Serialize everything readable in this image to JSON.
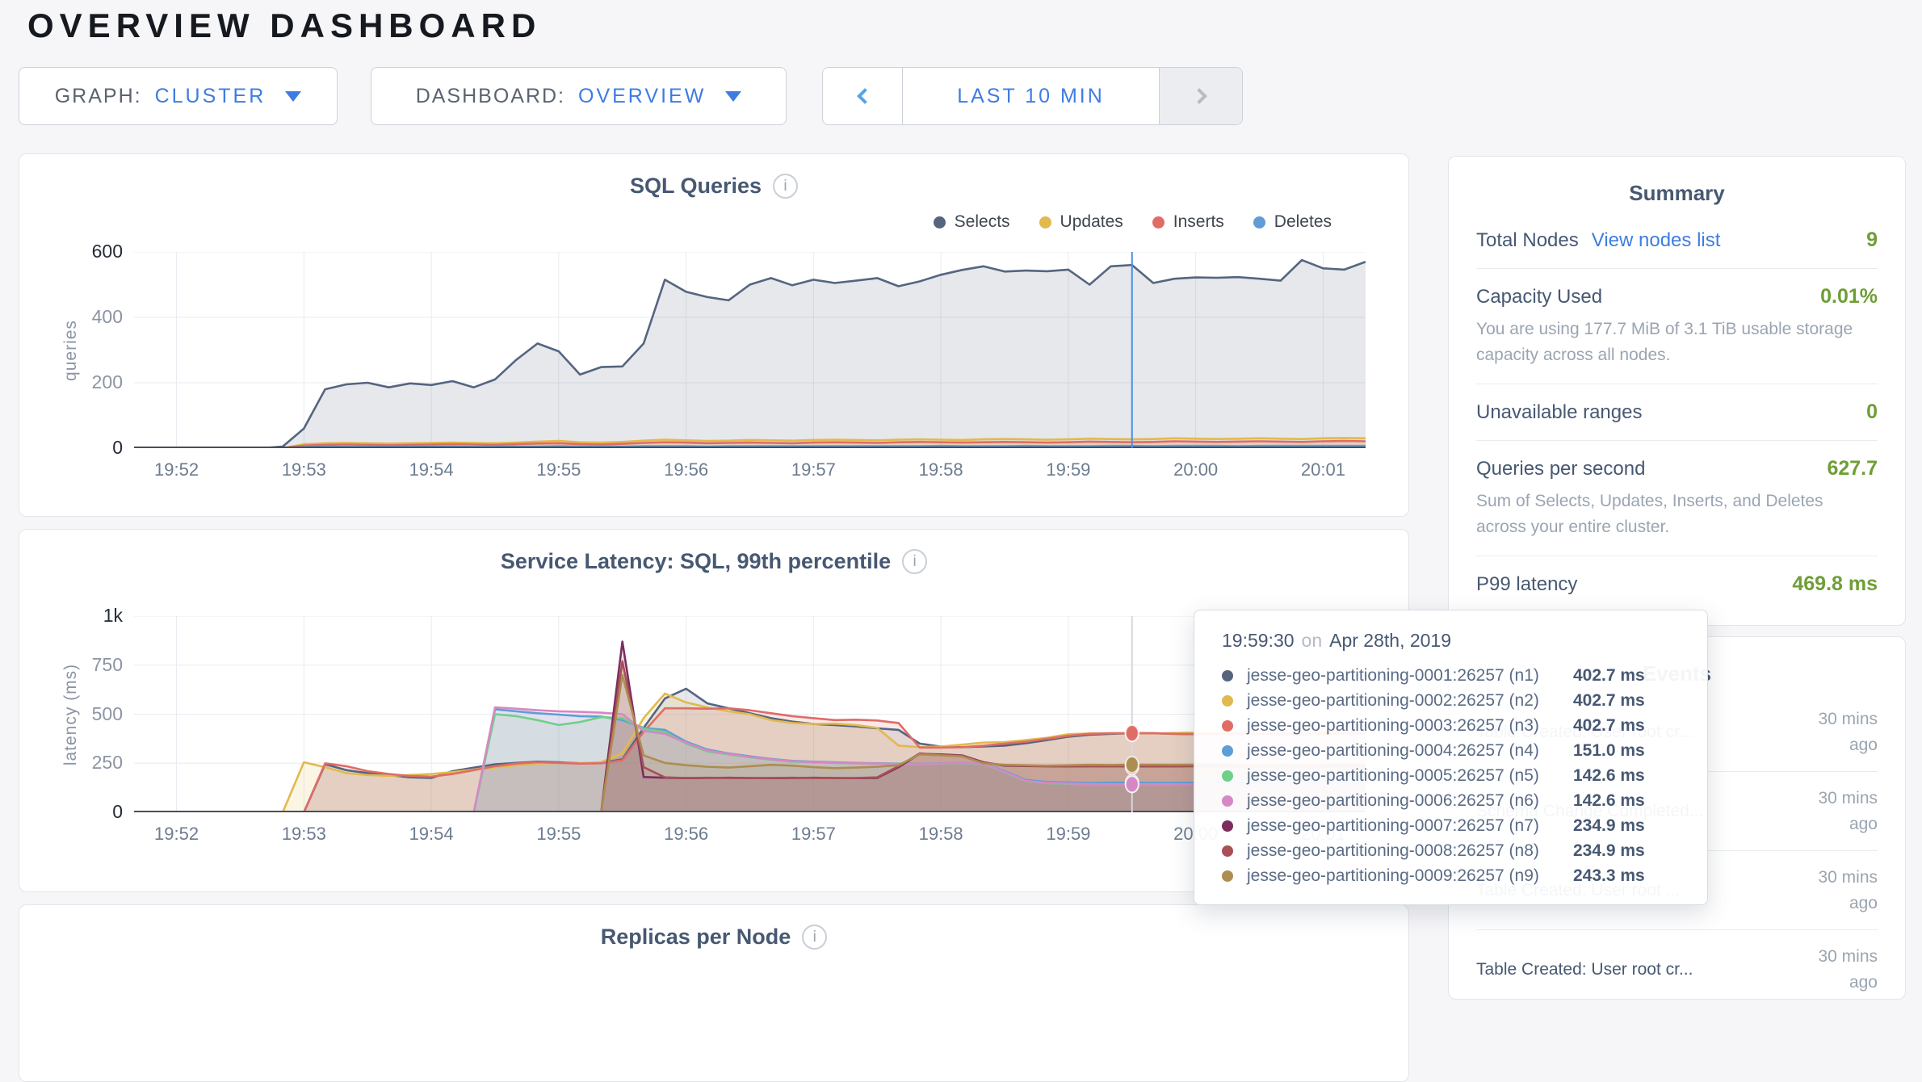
{
  "page": {
    "title": "OVERVIEW DASHBOARD"
  },
  "controls": {
    "graph": {
      "label": "GRAPH:",
      "value": "CLUSTER"
    },
    "dashboard": {
      "label": "DASHBOARD:",
      "value": "OVERVIEW"
    },
    "time_range": {
      "label": "LAST 10 MIN"
    }
  },
  "colors": {
    "accent_blue": "#3e7ce2",
    "link_blue": "#3d7de1",
    "value_green": "#6f9e36",
    "hover_line_sql": "#4a90e2",
    "hover_line_latency": "#d5d8dc"
  },
  "summary": {
    "title": "Summary",
    "rows": [
      {
        "label": "Total Nodes",
        "link": "View nodes list",
        "value": "9"
      },
      {
        "label": "Capacity Used",
        "value": "0.01%",
        "description": "You are using 177.7 MiB of 3.1 TiB usable storage capacity across all nodes."
      },
      {
        "label": "Unavailable ranges",
        "value": "0"
      },
      {
        "label": "Queries per second",
        "value": "627.7",
        "description": "Sum of Selects, Updates, Inserts, and Deletes across your entire cluster."
      },
      {
        "label": "P99 latency",
        "value": "469.8 ms"
      }
    ]
  },
  "events": {
    "title": "Events",
    "items": [
      {
        "text": "Table Created: User root cr...",
        "time": "30 mins ago"
      },
      {
        "text": "Schema Change Completed...",
        "time": "30 mins ago"
      },
      {
        "text": "Table Created: User root ...",
        "time": "30 mins ago"
      },
      {
        "text": "Table Created: User root cr...",
        "time": "30 mins ago"
      }
    ]
  },
  "tooltip": {
    "time": "19:59:30",
    "on": "on",
    "date": "Apr 28th, 2019",
    "rows": [
      {
        "color": "#55657f",
        "name": "jesse-geo-partitioning-0001:26257 (n1)",
        "value": "402.7 ms"
      },
      {
        "color": "#e2b94d",
        "name": "jesse-geo-partitioning-0002:26257 (n2)",
        "value": "402.7 ms"
      },
      {
        "color": "#e06c66",
        "name": "jesse-geo-partitioning-0003:26257 (n3)",
        "value": "402.7 ms"
      },
      {
        "color": "#5e9dd6",
        "name": "jesse-geo-partitioning-0004:26257 (n4)",
        "value": "151.0 ms"
      },
      {
        "color": "#6fd088",
        "name": "jesse-geo-partitioning-0005:26257 (n5)",
        "value": "142.6 ms"
      },
      {
        "color": "#d688c4",
        "name": "jesse-geo-partitioning-0006:26257 (n6)",
        "value": "142.6 ms"
      },
      {
        "color": "#7c2d5d",
        "name": "jesse-geo-partitioning-0007:26257 (n7)",
        "value": "234.9 ms"
      },
      {
        "color": "#a84f57",
        "name": "jesse-geo-partitioning-0008:26257 (n8)",
        "value": "234.9 ms"
      },
      {
        "color": "#ad8d50",
        "name": "jesse-geo-partitioning-0009:26257 (n9)",
        "value": "243.3 ms"
      }
    ]
  },
  "chart_data": [
    {
      "id": "sql-queries",
      "type": "area",
      "title": "SQL Queries",
      "ylabel": "queries",
      "x_start": "19:51:40",
      "x_end": "20:01:20",
      "x_span_s": 580,
      "sample_interval_s": 10,
      "x_ticks": [
        "19:52",
        "19:53",
        "19:54",
        "19:55",
        "19:56",
        "19:57",
        "19:58",
        "19:59",
        "20:00",
        "20:01"
      ],
      "tick_offsets_s": [
        20,
        80,
        140,
        200,
        260,
        320,
        380,
        440,
        500,
        560
      ],
      "ylim": [
        0,
        600
      ],
      "y_gridlines": [
        0,
        200,
        400,
        600
      ],
      "y_tick_labels": [
        "0",
        "200",
        "400",
        "600"
      ],
      "legend_position": "top-right",
      "grid": true,
      "hover": {
        "offset_s": 470,
        "time": "19:59:30",
        "dots": false
      },
      "series": [
        {
          "name": "Selects",
          "color": "#55657f",
          "values": [
            0,
            0,
            0,
            0,
            0,
            0,
            0,
            5,
            60,
            180,
            195,
            200,
            186,
            198,
            193,
            205,
            186,
            210,
            270,
            320,
            296,
            225,
            248,
            250,
            320,
            515,
            478,
            462,
            452,
            500,
            520,
            498,
            515,
            505,
            512,
            520,
            495,
            510,
            530,
            545,
            556,
            540,
            543,
            541,
            546,
            500,
            556,
            560,
            505,
            518,
            522,
            521,
            523,
            518,
            512,
            575,
            550,
            546,
            570
          ]
        },
        {
          "name": "Updates",
          "color": "#e2b94d",
          "values": [
            0,
            0,
            0,
            0,
            0,
            0,
            0,
            0,
            12,
            15,
            16,
            15,
            14,
            15,
            16,
            17,
            16,
            15,
            17,
            20,
            22,
            18,
            17,
            19,
            23,
            26,
            24,
            22,
            23,
            25,
            24,
            23,
            25,
            26,
            25,
            24,
            26,
            27,
            26,
            25,
            27,
            28,
            27,
            26,
            27,
            29,
            28,
            27,
            28,
            30,
            29,
            28,
            29,
            30,
            29,
            28,
            30,
            31,
            30
          ]
        },
        {
          "name": "Inserts",
          "color": "#e06c66",
          "values": [
            0,
            0,
            0,
            0,
            0,
            0,
            0,
            0,
            8,
            10,
            11,
            10,
            9,
            10,
            11,
            12,
            11,
            10,
            12,
            14,
            15,
            12,
            11,
            13,
            16,
            18,
            17,
            15,
            16,
            17,
            16,
            15,
            17,
            18,
            17,
            16,
            18,
            19,
            18,
            17,
            18,
            19,
            18,
            17,
            18,
            20,
            19,
            18,
            19,
            21,
            20,
            19,
            20,
            21,
            20,
            19,
            21,
            22,
            21
          ]
        },
        {
          "name": "Deletes",
          "color": "#5e9dd6",
          "values": [
            0,
            0,
            0,
            0,
            0,
            0,
            0,
            0,
            3,
            4,
            4,
            4,
            4,
            4,
            5,
            5,
            4,
            4,
            5,
            5,
            6,
            5,
            5,
            5,
            6,
            6,
            6,
            5,
            6,
            6,
            6,
            6,
            6,
            6,
            6,
            6,
            6,
            6,
            7,
            6,
            6,
            6,
            7,
            6,
            6,
            6,
            7,
            7,
            6,
            7,
            7,
            7,
            6,
            7,
            7,
            7,
            7,
            7,
            7
          ]
        }
      ]
    },
    {
      "id": "service-latency",
      "type": "area",
      "title": "Service Latency: SQL, 99th percentile",
      "ylabel": "latency (ms)",
      "x_start": "19:51:40",
      "x_end": "20:01:20",
      "x_span_s": 580,
      "sample_interval_s": 10,
      "x_ticks": [
        "19:52",
        "19:53",
        "19:54",
        "19:55",
        "19:56",
        "19:57",
        "19:58",
        "19:59",
        "20:00",
        "20:01"
      ],
      "tick_offsets_s": [
        20,
        80,
        140,
        200,
        260,
        320,
        380,
        440,
        500,
        560
      ],
      "ylim": [
        0,
        1000
      ],
      "y_gridlines": [
        0,
        250,
        500,
        750,
        1000
      ],
      "y_tick_labels": [
        "0",
        "250",
        "500",
        "750",
        "1k"
      ],
      "legend_position": "none",
      "grid": true,
      "hover": {
        "offset_s": 470,
        "time": "19:59:30",
        "dots": true
      },
      "series": [
        {
          "name": "jesse-geo-partitioning-0001:26257 (n1)",
          "color": "#55657f",
          "values": [
            0,
            0,
            0,
            0,
            0,
            0,
            0,
            0,
            0,
            245,
            215,
            200,
            190,
            178,
            175,
            210,
            228,
            245,
            252,
            258,
            255,
            250,
            252,
            270,
            430,
            580,
            630,
            555,
            530,
            505,
            480,
            462,
            450,
            445,
            438,
            428,
            420,
            350,
            335,
            332,
            336,
            340,
            352,
            368,
            385,
            395,
            400,
            403,
            403,
            400,
            398,
            399,
            400,
            401,
            400,
            399,
            402,
            405,
            403
          ]
        },
        {
          "name": "jesse-geo-partitioning-0002:26257 (n2)",
          "color": "#e2b94d",
          "values": [
            0,
            0,
            0,
            0,
            0,
            0,
            0,
            0,
            255,
            230,
            200,
            190,
            186,
            190,
            195,
            205,
            218,
            228,
            240,
            248,
            252,
            250,
            255,
            300,
            480,
            605,
            560,
            535,
            515,
            500,
            470,
            455,
            450,
            452,
            445,
            430,
            340,
            332,
            335,
            345,
            355,
            358,
            368,
            380,
            398,
            402,
            403,
            403,
            402,
            404,
            406,
            405,
            408,
            412,
            415,
            413,
            412,
            415,
            417
          ]
        },
        {
          "name": "jesse-geo-partitioning-0003:26257 (n3)",
          "color": "#e06c66",
          "values": [
            0,
            0,
            0,
            0,
            0,
            0,
            0,
            0,
            0,
            250,
            235,
            210,
            195,
            185,
            182,
            195,
            215,
            235,
            248,
            255,
            252,
            248,
            250,
            265,
            410,
            530,
            530,
            528,
            530,
            520,
            505,
            490,
            480,
            470,
            472,
            468,
            455,
            330,
            330,
            332,
            340,
            350,
            360,
            375,
            390,
            400,
            403,
            403,
            403,
            400,
            398,
            400,
            402,
            400,
            398,
            397,
            400,
            402,
            401
          ]
        },
        {
          "name": "jesse-geo-partitioning-0004:26257 (n4)",
          "color": "#5e9dd6",
          "values": [
            0,
            0,
            0,
            0,
            0,
            0,
            0,
            0,
            0,
            0,
            0,
            0,
            0,
            0,
            0,
            0,
            0,
            525,
            515,
            505,
            498,
            490,
            488,
            470,
            430,
            420,
            360,
            320,
            300,
            285,
            272,
            262,
            258,
            255,
            252,
            250,
            248,
            246,
            250,
            252,
            250,
            210,
            165,
            155,
            152,
            150,
            151,
            151,
            150,
            150,
            151,
            152,
            151,
            150,
            151,
            152,
            150,
            151,
            152
          ]
        },
        {
          "name": "jesse-geo-partitioning-0005:26257 (n5)",
          "color": "#6fd088",
          "values": [
            0,
            0,
            0,
            0,
            0,
            0,
            0,
            0,
            0,
            0,
            0,
            0,
            0,
            0,
            0,
            0,
            0,
            500,
            490,
            470,
            445,
            460,
            485,
            480,
            425,
            410,
            350,
            310,
            295,
            280,
            268,
            258,
            255,
            252,
            250,
            248,
            246,
            244,
            248,
            250,
            246,
            205,
            158,
            148,
            145,
            143,
            143,
            143,
            142,
            143,
            143,
            142,
            143,
            142,
            143,
            144,
            142,
            143,
            144
          ]
        },
        {
          "name": "jesse-geo-partitioning-0006:26257 (n6)",
          "color": "#d688c4",
          "values": [
            0,
            0,
            0,
            0,
            0,
            0,
            0,
            0,
            0,
            0,
            0,
            0,
            0,
            0,
            0,
            0,
            0,
            535,
            528,
            520,
            515,
            512,
            508,
            500,
            415,
            400,
            355,
            315,
            298,
            282,
            270,
            260,
            256,
            253,
            250,
            248,
            246,
            245,
            249,
            251,
            248,
            207,
            160,
            150,
            147,
            144,
            143,
            143,
            142,
            143,
            143,
            144,
            143,
            142,
            143,
            144,
            143,
            142,
            143
          ]
        },
        {
          "name": "jesse-geo-partitioning-0007:26257 (n7)",
          "color": "#7c2d5d",
          "values": [
            0,
            0,
            0,
            0,
            0,
            0,
            0,
            0,
            0,
            0,
            0,
            0,
            0,
            0,
            0,
            0,
            0,
            0,
            0,
            0,
            0,
            0,
            0,
            870,
            180,
            176,
            174,
            175,
            176,
            175,
            174,
            175,
            176,
            175,
            174,
            175,
            230,
            298,
            295,
            290,
            255,
            238,
            236,
            235,
            234,
            235,
            235,
            235,
            234,
            235,
            236,
            235,
            234,
            235,
            236,
            235,
            234,
            235,
            235
          ]
        },
        {
          "name": "jesse-geo-partitioning-0008:26257 (n8)",
          "color": "#a84f57",
          "values": [
            0,
            0,
            0,
            0,
            0,
            0,
            0,
            0,
            0,
            0,
            0,
            0,
            0,
            0,
            0,
            0,
            0,
            0,
            0,
            0,
            0,
            0,
            0,
            770,
            230,
            178,
            175,
            176,
            175,
            174,
            175,
            176,
            175,
            174,
            175,
            178,
            235,
            300,
            292,
            288,
            252,
            240,
            237,
            235,
            234,
            235,
            235,
            235,
            235,
            234,
            235,
            236,
            235,
            234,
            235,
            234,
            235,
            236,
            235
          ]
        },
        {
          "name": "jesse-geo-partitioning-0009:26257 (n9)",
          "color": "#ad8d50",
          "values": [
            0,
            0,
            0,
            0,
            0,
            0,
            0,
            0,
            0,
            0,
            0,
            0,
            0,
            0,
            0,
            0,
            0,
            0,
            0,
            0,
            0,
            0,
            0,
            700,
            290,
            252,
            240,
            232,
            228,
            235,
            242,
            238,
            230,
            225,
            228,
            232,
            240,
            295,
            290,
            285,
            250,
            242,
            240,
            238,
            240,
            242,
            241,
            243,
            243,
            242,
            243,
            244,
            243,
            242,
            243,
            242,
            243,
            244,
            243
          ]
        }
      ]
    },
    {
      "id": "replicas-per-node",
      "type": "area",
      "title": "Replicas per Node",
      "note": "chart body cut off at bottom edge of screenshot"
    }
  ]
}
